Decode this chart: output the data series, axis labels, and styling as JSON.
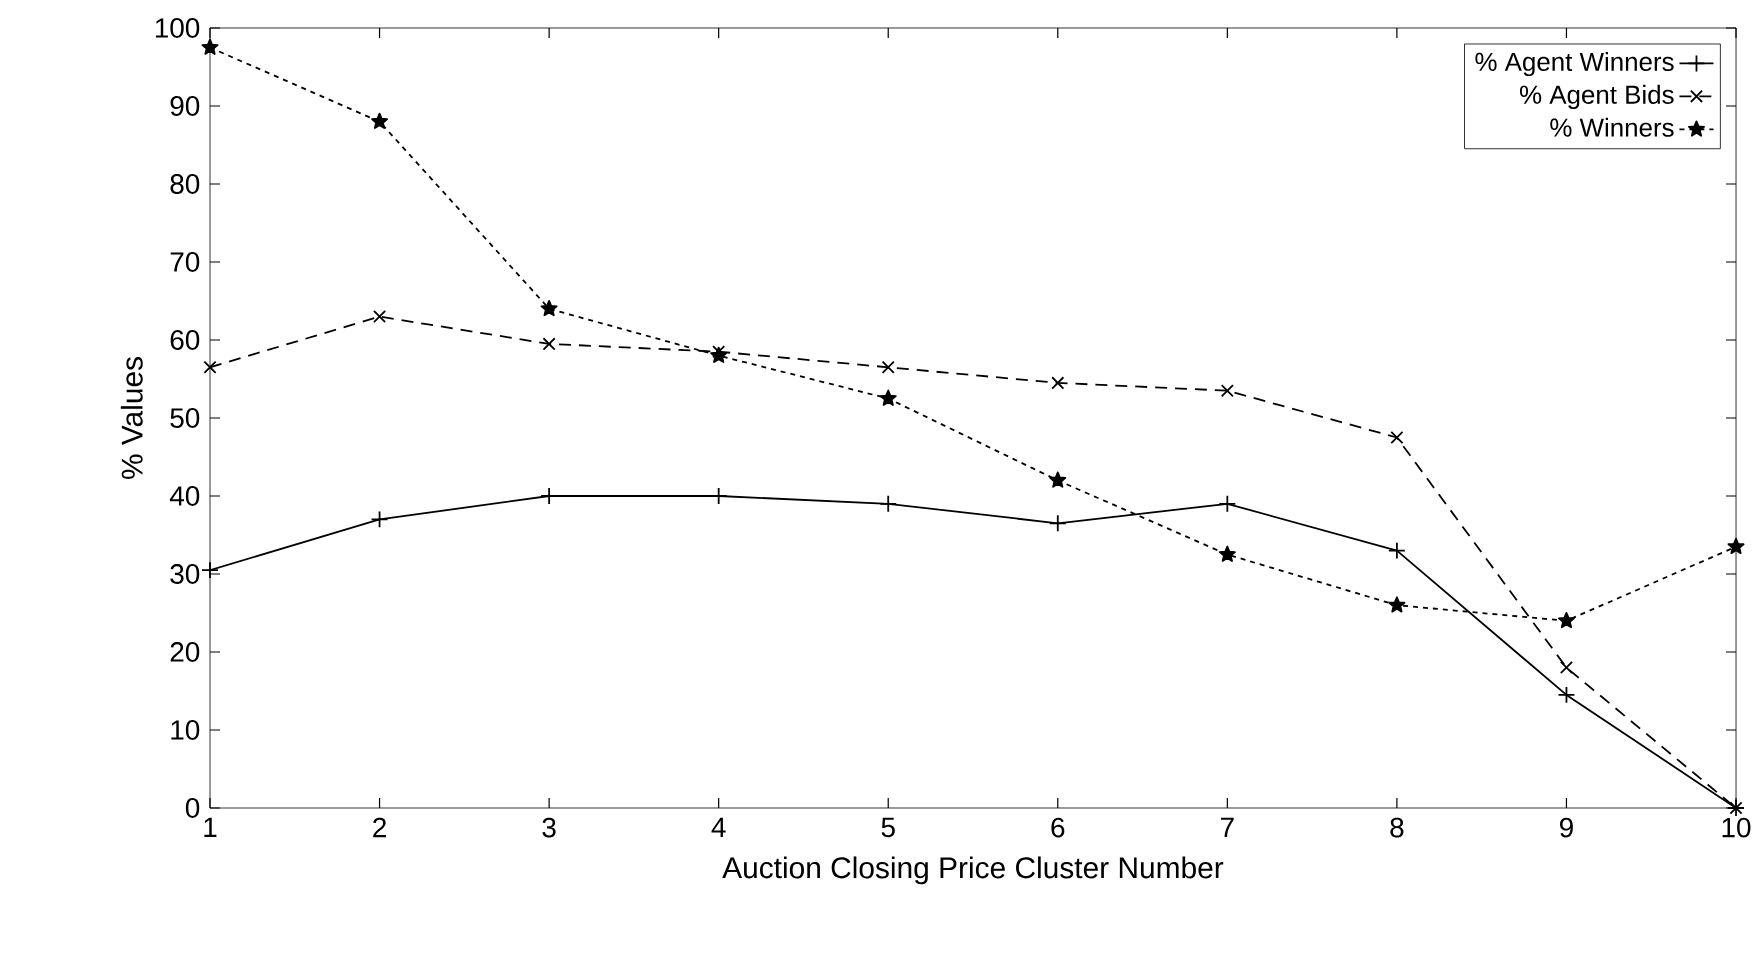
{
  "chart_data": {
    "type": "line",
    "xlabel": "Auction Closing Price Cluster Number",
    "ylabel": "% Values",
    "x": [
      1,
      2,
      3,
      4,
      5,
      6,
      7,
      8,
      9,
      10
    ],
    "series": [
      {
        "name": "% Agent Winners",
        "color": "#000000",
        "marker": "plus",
        "line_style": "solid",
        "values": [
          30.5,
          37,
          40,
          40,
          39,
          36.5,
          39,
          33,
          14.5,
          0
        ]
      },
      {
        "name": "% Agent Bids",
        "color": "#000000",
        "marker": "cross",
        "line_style": "dashed",
        "values": [
          56.5,
          63,
          59.5,
          58.5,
          56.5,
          54.5,
          53.5,
          47.5,
          18,
          0
        ]
      },
      {
        "name": "% Winners",
        "color": "#000000",
        "marker": "star",
        "line_style": "dotted",
        "values": [
          97.5,
          88,
          64,
          58,
          52.5,
          42,
          32.5,
          26,
          24,
          33.5
        ]
      }
    ],
    "xlim": [
      1,
      10
    ],
    "xticks": [
      1,
      2,
      3,
      4,
      5,
      6,
      7,
      8,
      9,
      10
    ],
    "ylim": [
      0,
      100
    ],
    "yticks": [
      0,
      10,
      20,
      30,
      40,
      50,
      60,
      70,
      80,
      90,
      100
    ],
    "legend": "top right",
    "grid": false
  }
}
